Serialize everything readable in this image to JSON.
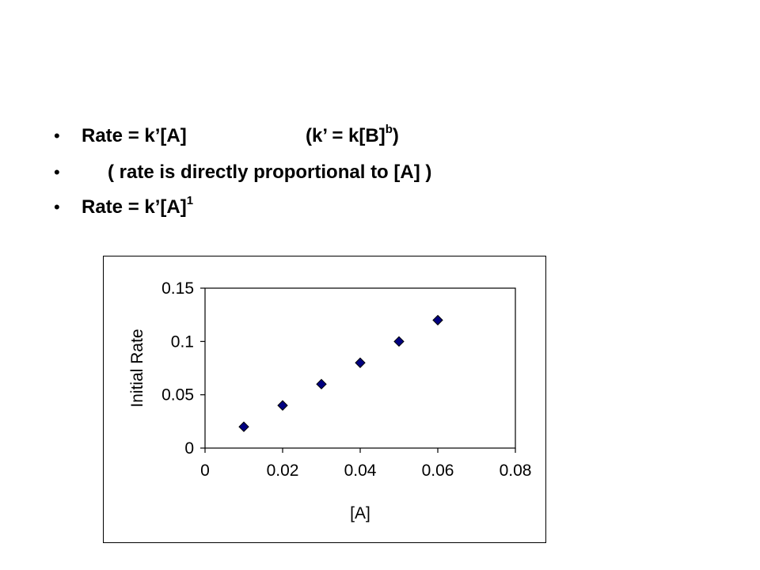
{
  "slide": {
    "bullets": [
      {
        "bullet": "•",
        "text": "Rate = k’[A]",
        "note": "(k’ = k[B]",
        "note_sup": "b",
        "note_end": ")"
      },
      {
        "bullet": "•",
        "text": "( rate is directly proportional to [A] )"
      },
      {
        "bullet": "•",
        "text": "Rate = k’[A]",
        "sup": "1"
      }
    ]
  },
  "chart_data": {
    "type": "scatter",
    "x": [
      0.01,
      0.02,
      0.03,
      0.04,
      0.05,
      0.06
    ],
    "y": [
      0.02,
      0.04,
      0.06,
      0.08,
      0.1,
      0.12
    ],
    "xlabel": "[A]",
    "ylabel": "Initial Rate",
    "xlim": [
      0,
      0.08
    ],
    "ylim": [
      0,
      0.15
    ],
    "x_ticks": [
      "0",
      "0.02",
      "0.04",
      "0.06",
      "0.08"
    ],
    "y_ticks": [
      "0",
      "0.05",
      "0.1",
      "0.15"
    ],
    "marker": "diamond",
    "marker_color": "#000080",
    "grid": false,
    "legend": "none"
  }
}
